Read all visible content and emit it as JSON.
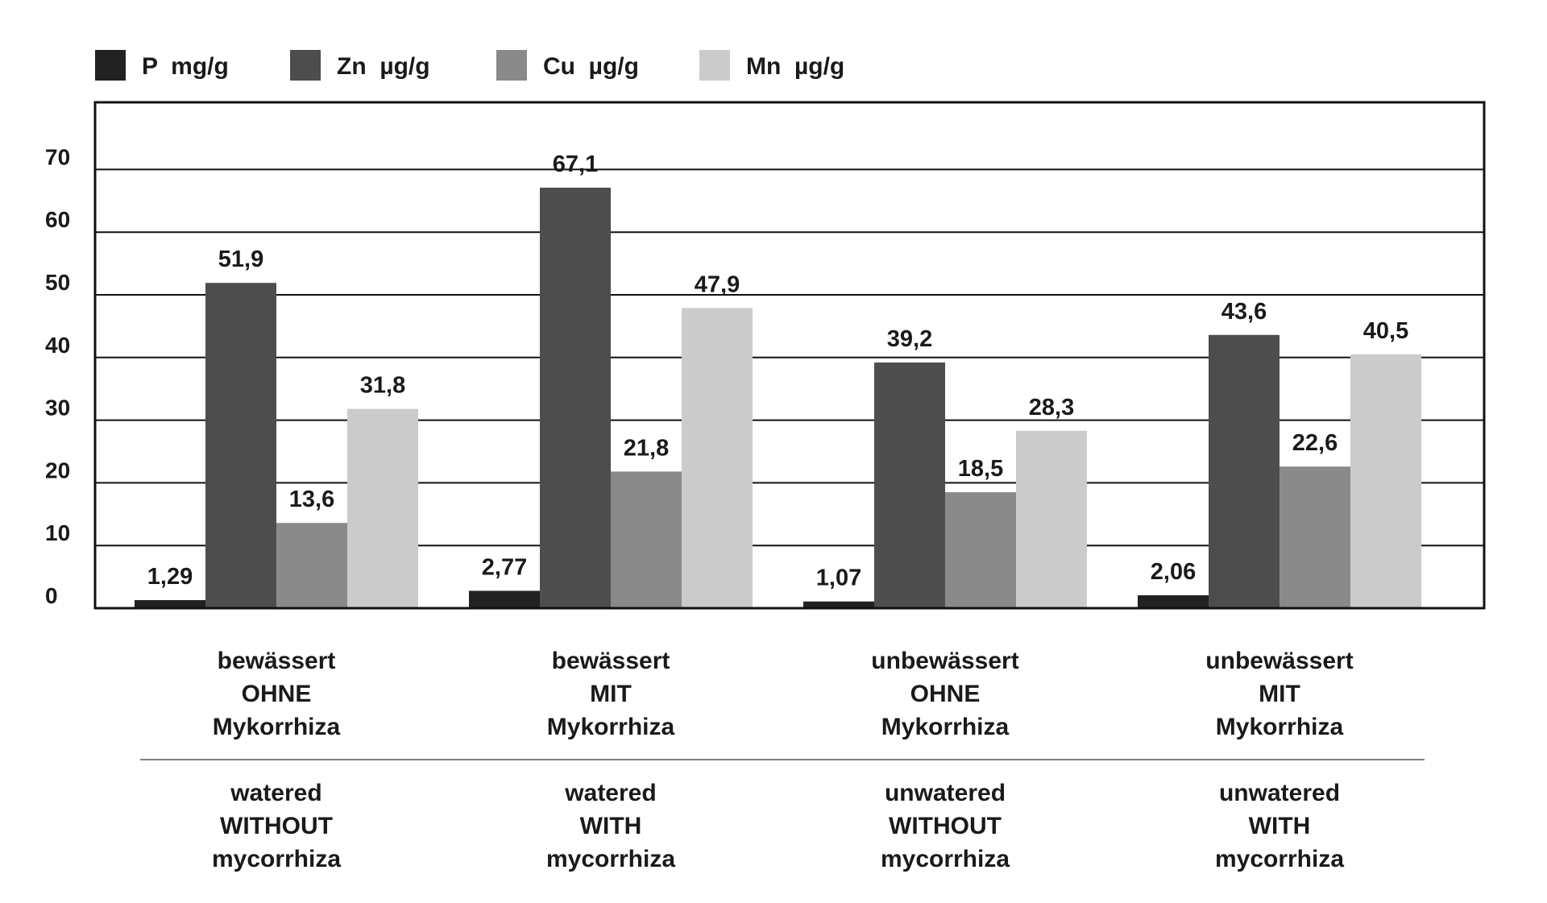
{
  "chart_data": {
    "type": "bar",
    "title": "",
    "xlabel": "",
    "ylabel": "",
    "ylim": [
      0,
      80
    ],
    "y_ticks": [
      0,
      10,
      20,
      30,
      40,
      50,
      60,
      70
    ],
    "grid": true,
    "legend_position": "top",
    "categories": [
      {
        "de": [
          "bewässert",
          "OHNE",
          "Mykorrhiza"
        ],
        "en": [
          "watered",
          "WITHOUT",
          "mycorrhiza"
        ]
      },
      {
        "de": [
          "bewässert",
          "MIT",
          "Mykorrhiza"
        ],
        "en": [
          "watered",
          "WITH",
          "mycorrhiza"
        ]
      },
      {
        "de": [
          "unbewässert",
          "OHNE",
          "Mykorrhiza"
        ],
        "en": [
          "unwatered",
          "WITHOUT",
          "mycorrhiza"
        ]
      },
      {
        "de": [
          "unbewässert",
          "MIT",
          "Mykorrhiza"
        ],
        "en": [
          "unwatered",
          "WITH",
          "mycorrhiza"
        ]
      }
    ],
    "series": [
      {
        "name": "P  mg/g",
        "color": "#222222",
        "values": [
          1.29,
          2.77,
          1.07,
          2.06
        ],
        "labels": [
          "1,29",
          "2,77",
          "1,07",
          "2,06"
        ]
      },
      {
        "name": "Zn  µg/g",
        "color": "#4d4d4d",
        "values": [
          51.9,
          67.1,
          39.2,
          43.6
        ],
        "labels": [
          "51,9",
          "67,1",
          "39,2",
          "43,6"
        ]
      },
      {
        "name": "Cu  µg/g",
        "color": "#8a8a8a",
        "values": [
          13.6,
          21.8,
          18.5,
          22.6
        ],
        "labels": [
          "13,6",
          "21,8",
          "18,5",
          "22,6"
        ]
      },
      {
        "name": "Mn  µg/g",
        "color": "#cbcbcb",
        "values": [
          31.8,
          47.9,
          28.3,
          40.5
        ],
        "labels": [
          "31,8",
          "47,9",
          "28,3",
          "40,5"
        ]
      }
    ]
  }
}
